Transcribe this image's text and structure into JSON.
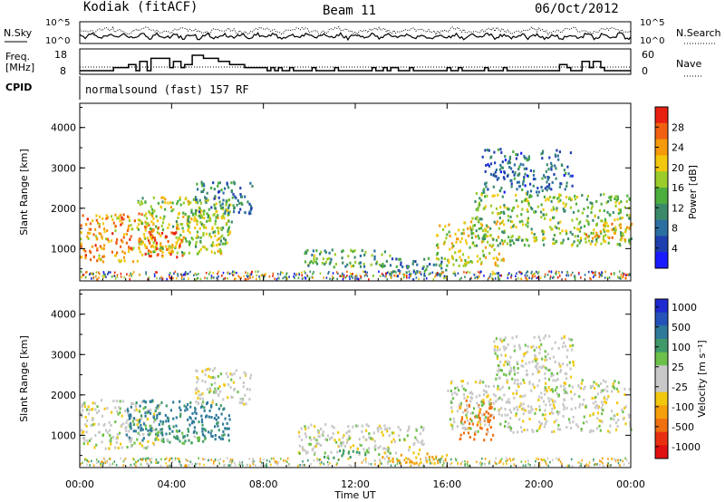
{
  "header": {
    "station": "Kodiak (fitACF)",
    "beam": "Beam 11",
    "date": "06/Oct/2012"
  },
  "noise_panel": {
    "left_label": "N.Sky",
    "right_label": "N.Search",
    "tick_top": "10^5",
    "tick_bottom": "10^0"
  },
  "freq_panel": {
    "left_label_1": "Freq.",
    "left_label_2": "[MHz]",
    "left_tick_top": "18",
    "left_tick_bottom": "8",
    "right_label": "Nave",
    "right_tick_top": "60",
    "right_tick_bottom": "0",
    "freq_steps": [
      1,
      1,
      1,
      1,
      1,
      1,
      1,
      1,
      1,
      2,
      2,
      2,
      2,
      3,
      3,
      1,
      4,
      4,
      1,
      5,
      5,
      5,
      5,
      5,
      2,
      4,
      4,
      2,
      3,
      3,
      6,
      6,
      6,
      5,
      5,
      5,
      5,
      4,
      4,
      4,
      3,
      3,
      3,
      3,
      2,
      2,
      2,
      2,
      2,
      2,
      1,
      2,
      1,
      2,
      1,
      1,
      2,
      1,
      1,
      1,
      1,
      1,
      2,
      1,
      1,
      1,
      1,
      1,
      2,
      1,
      1,
      1,
      1,
      1,
      1,
      1,
      1,
      1,
      2,
      1,
      1,
      2,
      1,
      2,
      2,
      1,
      1,
      1,
      2,
      1,
      1,
      1,
      1,
      1,
      1,
      1,
      1,
      1,
      2,
      1,
      1,
      2,
      1,
      1,
      1,
      1,
      1,
      1,
      2,
      1,
      1,
      1,
      1,
      2,
      1,
      1,
      1,
      1,
      1,
      1,
      1,
      1,
      1,
      1,
      1,
      1,
      1,
      1,
      3,
      3,
      2,
      1,
      1,
      1,
      4,
      4,
      2,
      4,
      4,
      2,
      1,
      1,
      1,
      1,
      1,
      1,
      1
    ]
  },
  "cpid": {
    "label": "CPID",
    "text": "normalsound (fast) 157 RF"
  },
  "power_panel": {
    "ylabel": "Slant Range [km]",
    "yticks": [
      "1000",
      "2000",
      "3000",
      "4000"
    ],
    "colorbar_label": "Power [dB]",
    "colorbar_ticks": [
      "4",
      "8",
      "12",
      "16",
      "20",
      "24",
      "28"
    ],
    "colorbar_colors": [
      "#1a1aff",
      "#1f3fb0",
      "#2b6fa0",
      "#3a8a6a",
      "#4cae3c",
      "#9ccc2a",
      "#f2c80f",
      "#f59a0a",
      "#f06010",
      "#e82010"
    ]
  },
  "velocity_panel": {
    "ylabel": "Slant Range [km]",
    "yticks": [
      "1000",
      "2000",
      "3000",
      "4000"
    ],
    "colorbar_label": "Velocity [m s⁻¹]",
    "colorbar_ticks": [
      "1000",
      "500",
      "100",
      "25",
      "-25",
      "-100",
      "-500",
      "-1000"
    ],
    "colorbar_colors": [
      "#1f2ad0",
      "#2552b8",
      "#2e7a9a",
      "#3f9a6a",
      "#6cc04a",
      "#c8c8c8",
      "#c8c8c8",
      "#f2c80f",
      "#f5a00a",
      "#f07010",
      "#e83010",
      "#e01010"
    ]
  },
  "xaxis": {
    "label": "Time UT",
    "ticks": [
      "00:00",
      "04:00",
      "08:00",
      "12:00",
      "16:00",
      "20:00",
      "00:00"
    ]
  },
  "chart_data": [
    {
      "type": "heatmap",
      "title": "Power [dB]",
      "xlabel": "Time UT",
      "ylabel": "Slant Range [km]",
      "x_range_hours": [
        0,
        24
      ],
      "ylim": [
        200,
        4600
      ],
      "colorbar_range": [
        0,
        32
      ],
      "regions": [
        {
          "t0": 0.0,
          "t1": 3.2,
          "r0": 700,
          "r1": 1900,
          "value": 24
        },
        {
          "t0": 2.5,
          "t1": 6.6,
          "r0": 900,
          "r1": 2300,
          "value": 18
        },
        {
          "t0": 3.0,
          "t1": 4.5,
          "r0": 800,
          "r1": 1600,
          "value": 26
        },
        {
          "t0": 4.5,
          "t1": 6.5,
          "r0": 1100,
          "r1": 2000,
          "value": 16
        },
        {
          "t0": 5.0,
          "t1": 7.5,
          "r0": 1900,
          "r1": 2700,
          "value": 10
        },
        {
          "t0": 9.5,
          "t1": 13.5,
          "r0": 550,
          "r1": 1000,
          "value": 14
        },
        {
          "t0": 13.0,
          "t1": 16.0,
          "r0": 350,
          "r1": 800,
          "value": 10
        },
        {
          "t0": 15.5,
          "t1": 18.5,
          "r0": 600,
          "r1": 1700,
          "value": 20
        },
        {
          "t0": 17.0,
          "t1": 24.0,
          "r0": 1100,
          "r1": 2400,
          "value": 16
        },
        {
          "t0": 17.5,
          "t1": 21.5,
          "r0": 2400,
          "r1": 3500,
          "value": 8
        },
        {
          "t0": 22.0,
          "t1": 24.0,
          "r0": 1200,
          "r1": 1700,
          "value": 22
        }
      ]
    },
    {
      "type": "heatmap",
      "title": "Velocity [m s⁻¹]",
      "xlabel": "Time UT",
      "ylabel": "Slant Range [km]",
      "x_range_hours": [
        0,
        24
      ],
      "ylim": [
        200,
        4600
      ],
      "colorbar_range": [
        -1000,
        1000
      ],
      "regions": [
        {
          "t0": 0.0,
          "t1": 3.5,
          "r0": 700,
          "r1": 1900,
          "value": 0
        },
        {
          "t0": 2.0,
          "t1": 6.5,
          "r0": 900,
          "r1": 1900,
          "value": 120
        },
        {
          "t0": 3.0,
          "t1": 5.5,
          "r0": 800,
          "r1": 1200,
          "value": 60
        },
        {
          "t0": 5.0,
          "t1": 7.5,
          "r0": 1800,
          "r1": 2700,
          "value": 0
        },
        {
          "t0": 9.5,
          "t1": 15.0,
          "r0": 550,
          "r1": 1300,
          "value": 0
        },
        {
          "t0": 10.5,
          "t1": 12.5,
          "r0": 450,
          "r1": 650,
          "value": 60
        },
        {
          "t0": 13.0,
          "t1": 16.0,
          "r0": 300,
          "r1": 600,
          "value": -60
        },
        {
          "t0": 16.5,
          "t1": 18.0,
          "r0": 900,
          "r1": 1900,
          "value": -200
        },
        {
          "t0": 16.0,
          "t1": 24.0,
          "r0": 1100,
          "r1": 2400,
          "value": 0
        },
        {
          "t0": 18.0,
          "t1": 21.5,
          "r0": 2400,
          "r1": 3500,
          "value": 0
        }
      ]
    }
  ]
}
